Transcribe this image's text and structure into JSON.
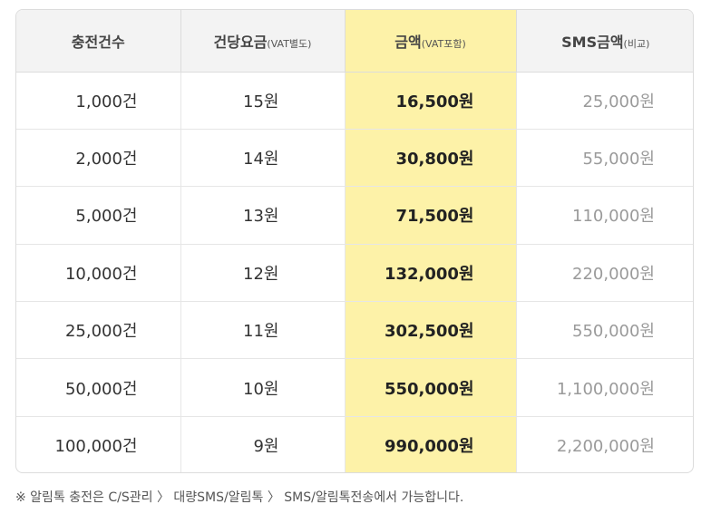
{
  "header": {
    "count": "충전건수",
    "unit_price": "건당요금",
    "unit_price_sub": "(VAT별도)",
    "amount": "금액",
    "amount_sub": "(VAT포함)",
    "sms_amount": "SMS금액",
    "sms_amount_sub": "(비교)"
  },
  "rows": [
    {
      "count": "1,000건",
      "unit": "15원",
      "amount": "16,500원",
      "sms": "25,000원"
    },
    {
      "count": "2,000건",
      "unit": "14원",
      "amount": "30,800원",
      "sms": "55,000원"
    },
    {
      "count": "5,000건",
      "unit": "13원",
      "amount": "71,500원",
      "sms": "110,000원"
    },
    {
      "count": "10,000건",
      "unit": "12원",
      "amount": "132,000원",
      "sms": "220,000원"
    },
    {
      "count": "25,000건",
      "unit": "11원",
      "amount": "302,500원",
      "sms": "550,000원"
    },
    {
      "count": "50,000건",
      "unit": "10원",
      "amount": "550,000원",
      "sms": "1,100,000원"
    },
    {
      "count": "100,000건",
      "unit": "9원",
      "amount": "990,000원",
      "sms": "2,200,000원"
    }
  ],
  "note": "※ 알림톡 충전은 C/S관리 〉 대량SMS/알림톡 〉 SMS/알림톡전송에서 가능합니다.",
  "colors": {
    "highlight": "#fdf2a8",
    "header_bg": "#f3f3f3",
    "muted_text": "#9a9a9a"
  }
}
